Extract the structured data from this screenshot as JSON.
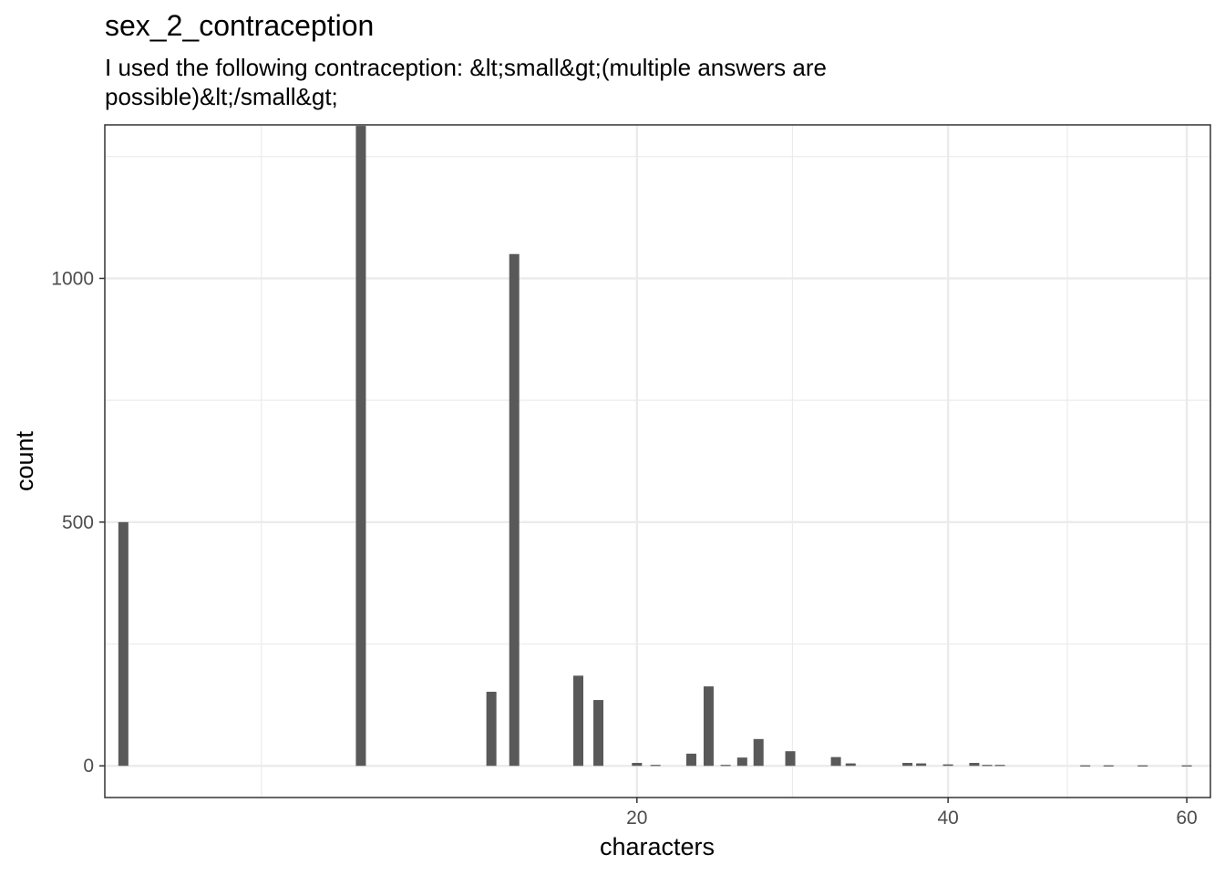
{
  "title": "sex_2_contraception",
  "subtitle": "I used the following contraception: &lt;small&gt;(multiple answers are possible)&lt;/small&gt;",
  "chart_data": {
    "type": "bar",
    "xlabel": "characters",
    "ylabel": "count",
    "x_scale": "sqrt",
    "xlim": [
      1.7,
      62.2
    ],
    "ylim": [
      -65,
      1315
    ],
    "x_ticks": [
      20,
      40,
      60
    ],
    "y_ticks": [
      0,
      500,
      1000
    ],
    "grid": true,
    "bars": [
      {
        "x": 2,
        "y": 500
      },
      {
        "x": 8,
        "y": 1313
      },
      {
        "x": 13,
        "y": 152
      },
      {
        "x": 14,
        "y": 1050
      },
      {
        "x": 17,
        "y": 185
      },
      {
        "x": 18,
        "y": 135
      },
      {
        "x": 20,
        "y": 6
      },
      {
        "x": 21,
        "y": 2
      },
      {
        "x": 23,
        "y": 25
      },
      {
        "x": 24,
        "y": 163
      },
      {
        "x": 25,
        "y": 2
      },
      {
        "x": 26,
        "y": 17
      },
      {
        "x": 27,
        "y": 55
      },
      {
        "x": 29,
        "y": 30
      },
      {
        "x": 32,
        "y": 18
      },
      {
        "x": 33,
        "y": 5
      },
      {
        "x": 37,
        "y": 6
      },
      {
        "x": 38,
        "y": 5
      },
      {
        "x": 40,
        "y": 3
      },
      {
        "x": 42,
        "y": 6
      },
      {
        "x": 43,
        "y": 2
      },
      {
        "x": 44,
        "y": 2
      },
      {
        "x": 51,
        "y": 1
      },
      {
        "x": 53,
        "y": 1
      },
      {
        "x": 56,
        "y": 1
      },
      {
        "x": 60,
        "y": 1
      }
    ]
  }
}
